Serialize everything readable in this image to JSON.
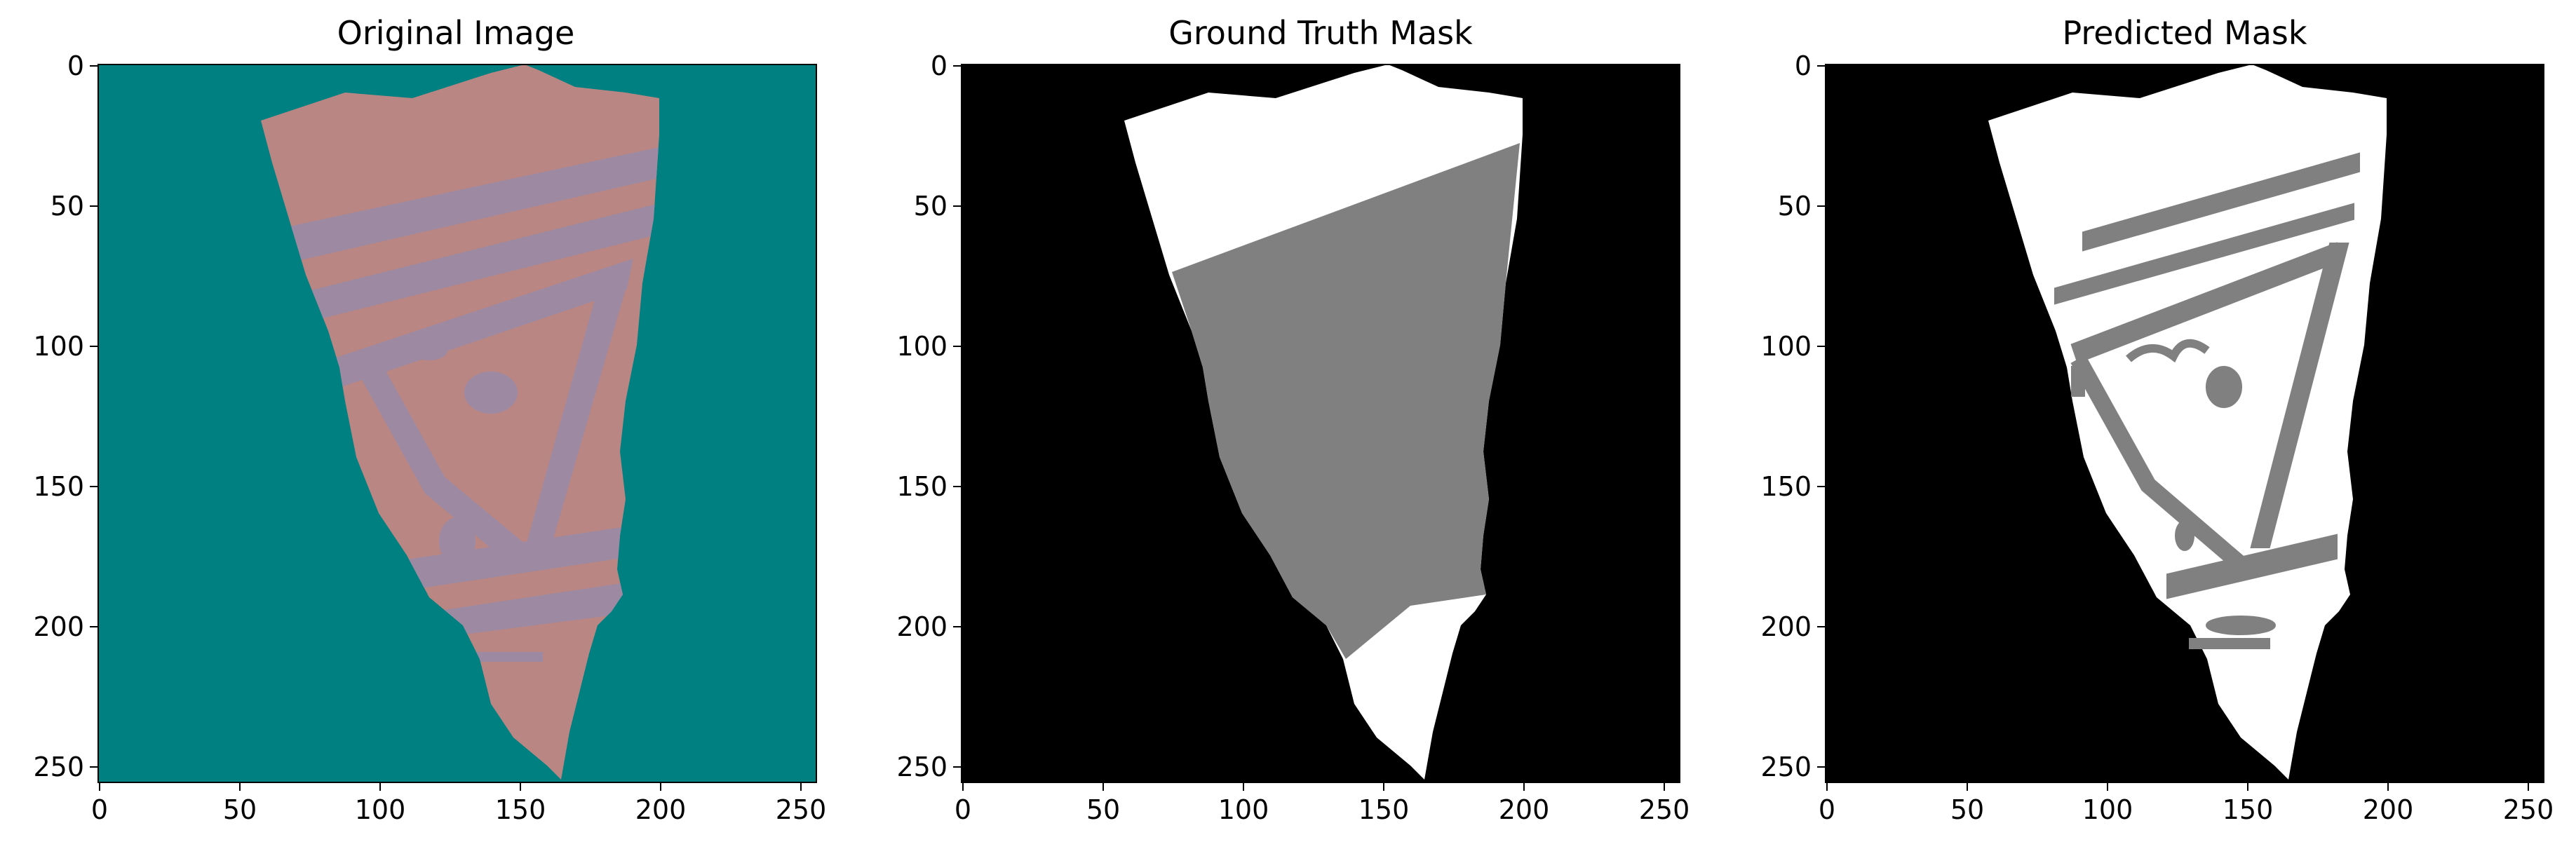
{
  "panels": [
    {
      "title": "Original Image",
      "kind": "original"
    },
    {
      "title": "Ground Truth Mask",
      "kind": "ground_truth"
    },
    {
      "title": "Predicted Mask",
      "kind": "predicted"
    }
  ],
  "axes": {
    "x_ticks": [
      0,
      50,
      100,
      150,
      200,
      250
    ],
    "y_ticks": [
      0,
      50,
      100,
      150,
      200,
      250
    ],
    "xlim": [
      -0.5,
      255.5
    ],
    "ylim": [
      255.5,
      -0.5
    ]
  },
  "colors": {
    "teal_background": "#008080",
    "fragment": "#b98683",
    "fragment_pattern": "#9d8aa2",
    "mask_background": "#000000",
    "mask_white": "#ffffff",
    "mask_gray": "#808080"
  }
}
